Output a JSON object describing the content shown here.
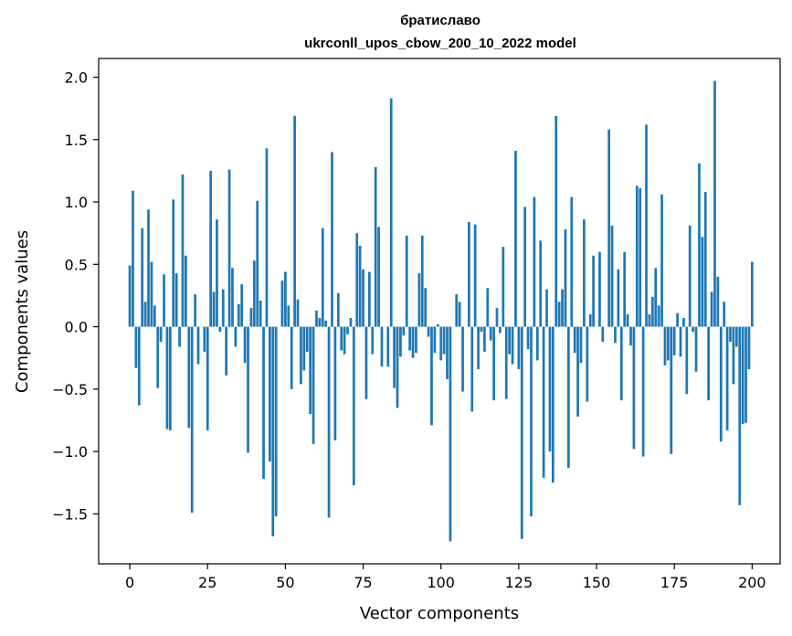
{
  "title_line1": "братиславо",
  "title_line2": "ukrconll_upos_cbow_200_10_2022 model",
  "chart_data": {
    "type": "bar",
    "title": "братиславо\nukrconll_upos_cbow_200_10_2022 model",
    "xlabel": "Vector components",
    "ylabel": "Components values",
    "xlim": [
      -10,
      209
    ],
    "ylim": [
      -1.9,
      2.15
    ],
    "xticks": [
      0,
      25,
      50,
      75,
      100,
      125,
      150,
      175,
      200
    ],
    "yticks": [
      -1.5,
      -1.0,
      -0.5,
      0.0,
      0.5,
      1.0,
      1.5,
      2.0
    ],
    "ytick_labels": [
      "−1.5",
      "−1.0",
      "−0.5",
      "0.0",
      "0.5",
      "1.0",
      "1.5",
      "2.0"
    ],
    "bar_color": "#1f77b4",
    "grid": false,
    "legend": "none",
    "values": [
      0.49,
      1.09,
      -0.33,
      -0.63,
      0.79,
      0.2,
      0.94,
      0.52,
      0.17,
      -0.49,
      -0.12,
      0.42,
      -0.82,
      -0.83,
      1.02,
      0.43,
      -0.16,
      1.22,
      0.57,
      -0.81,
      -1.49,
      0.26,
      -0.3,
      0.0,
      -0.2,
      -0.83,
      1.25,
      0.28,
      0.86,
      -0.04,
      0.3,
      -0.39,
      1.26,
      0.47,
      -0.16,
      0.18,
      0.34,
      -0.29,
      -1.01,
      0.15,
      0.53,
      1.01,
      0.21,
      -1.22,
      1.43,
      -1.08,
      -1.68,
      -1.52,
      0.0,
      0.37,
      0.44,
      0.17,
      -0.5,
      1.69,
      0.22,
      -0.46,
      -0.35,
      -0.2,
      -0.7,
      -0.94,
      0.13,
      0.07,
      0.79,
      0.05,
      -1.53,
      1.4,
      -0.91,
      0.27,
      -0.19,
      -0.22,
      -0.06,
      0.07,
      -1.27,
      0.75,
      0.65,
      0.46,
      -0.58,
      0.44,
      -0.22,
      1.28,
      0.8,
      -0.32,
      0.0,
      -0.32,
      1.83,
      -0.49,
      -0.65,
      -0.24,
      -0.07,
      0.73,
      -0.19,
      -0.25,
      -0.21,
      0.43,
      0.73,
      0.31,
      -0.08,
      -0.79,
      -0.21,
      0.02,
      -0.27,
      -0.22,
      -0.42,
      -1.72,
      0.0,
      0.26,
      0.2,
      -0.52,
      0.0,
      0.84,
      -0.68,
      0.82,
      -0.34,
      -0.04,
      -0.2,
      0.31,
      -0.11,
      -0.59,
      0.15,
      -0.05,
      0.64,
      -0.58,
      -0.22,
      -0.3,
      1.41,
      -0.34,
      -1.7,
      0.96,
      -0.18,
      -1.52,
      1.04,
      -0.27,
      0.69,
      -1.21,
      0.3,
      -1.0,
      -1.25,
      1.69,
      0.2,
      0.3,
      0.78,
      -1.13,
      1.04,
      -0.21,
      -0.72,
      -0.29,
      0.86,
      -0.6,
      0.1,
      0.57,
      0.0,
      0.6,
      -0.12,
      0.0,
      1.58,
      0.81,
      -0.13,
      0.46,
      -0.59,
      0.6,
      0.1,
      -0.15,
      -0.98,
      1.13,
      1.11,
      -1.04,
      1.62,
      0.1,
      0.24,
      0.47,
      0.17,
      1.06,
      -0.31,
      -0.27,
      -1.02,
      -0.23,
      0.11,
      -0.24,
      0.07,
      -0.54,
      0.81,
      -0.04,
      -0.36,
      1.31,
      0.72,
      1.08,
      -0.59,
      0.28,
      1.97,
      0.4,
      -0.92,
      0.2,
      -0.83,
      -0.12,
      -0.46,
      -0.16,
      -1.43,
      -0.78,
      -0.77,
      -0.34,
      0.52
    ]
  }
}
